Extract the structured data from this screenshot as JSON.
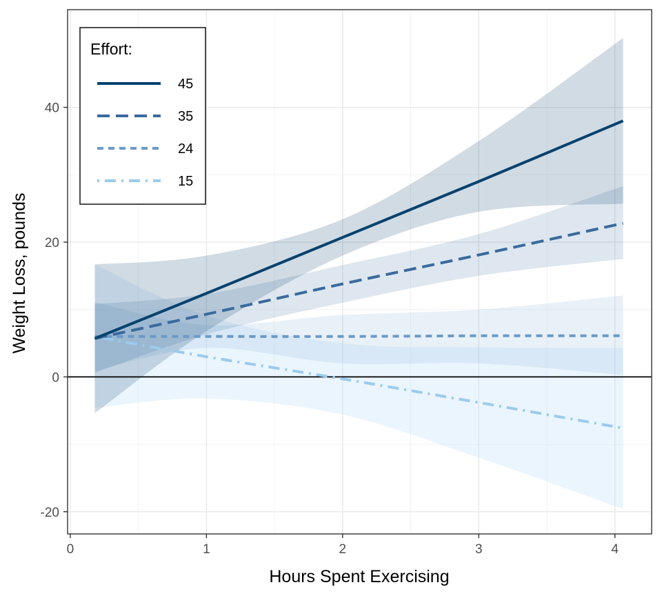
{
  "chart_data": {
    "type": "line",
    "xlabel": "Hours Spent Exercising",
    "ylabel": "Weight Loss, pounds",
    "xlim": [
      -0.02,
      4.27
    ],
    "ylim": [
      -23.3,
      54.5
    ],
    "x_ticks": [
      0,
      1,
      2,
      3,
      4
    ],
    "y_ticks": [
      -20,
      0,
      20,
      40
    ],
    "grid": true,
    "reference_line_y": 0,
    "legend": {
      "title": "Effort:",
      "position": "top-left"
    },
    "x": [
      0.18,
      1.0,
      2.0,
      3.0,
      4.06
    ],
    "series": [
      {
        "name": "45",
        "color": "#08426e",
        "dash": "solid",
        "values": [
          5.7,
          12.4,
          20.7,
          29.0,
          38.0
        ],
        "lower": [
          -5.4,
          6.8,
          18.0,
          24.5,
          25.7
        ],
        "upper": [
          16.7,
          18.0,
          23.4,
          35.0,
          50.3
        ]
      },
      {
        "name": "35",
        "color": "#3a6a9e",
        "dash": "long-dash",
        "values": [
          5.7,
          9.3,
          13.8,
          18.1,
          22.8
        ],
        "lower": [
          0.6,
          6.3,
          11.0,
          15.0,
          17.5
        ],
        "upper": [
          10.8,
          12.3,
          16.6,
          21.2,
          28.3
        ]
      },
      {
        "name": "24",
        "color": "#6b9ac9",
        "dash": "short-dash",
        "values": [
          6.0,
          6.0,
          6.0,
          6.1,
          6.1
        ],
        "lower": [
          0.9,
          4.3,
          2.0,
          2.0,
          0.3
        ],
        "upper": [
          11.1,
          7.7,
          9.2,
          10.0,
          12.1
        ]
      },
      {
        "name": "15",
        "color": "#9acbee",
        "dash": "dot-dash",
        "values": [
          6.0,
          3.0,
          -0.3,
          -3.8,
          -7.6
        ],
        "lower": [
          -4.6,
          -3.2,
          -5.6,
          -12.0,
          -19.6
        ],
        "upper": [
          16.7,
          9.1,
          5.0,
          4.4,
          4.3
        ]
      }
    ]
  }
}
